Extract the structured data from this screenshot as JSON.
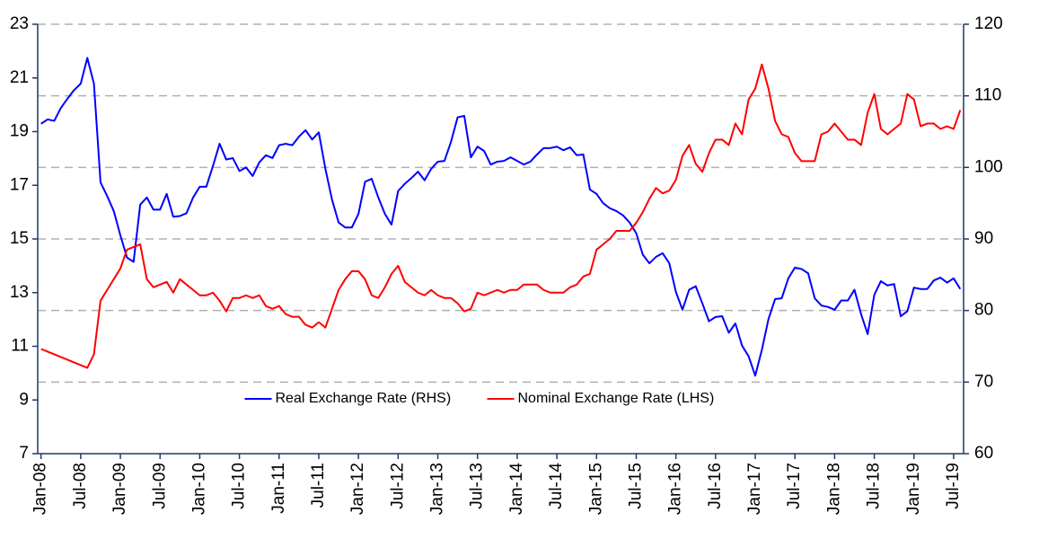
{
  "chart_data": {
    "type": "line",
    "categories": [
      "Jan-08",
      null,
      null,
      null,
      null,
      null,
      "Jul-08",
      null,
      null,
      null,
      null,
      null,
      "Jan-09",
      null,
      null,
      null,
      null,
      null,
      "Jul-09",
      null,
      null,
      null,
      null,
      null,
      "Jan-10",
      null,
      null,
      null,
      null,
      null,
      "Jul-10",
      null,
      null,
      null,
      null,
      null,
      "Jan-11",
      null,
      null,
      null,
      null,
      null,
      "Jul-11",
      null,
      null,
      null,
      null,
      null,
      "Jan-12",
      null,
      null,
      null,
      null,
      null,
      "Jul-12",
      null,
      null,
      null,
      null,
      null,
      "Jan-13",
      null,
      null,
      null,
      null,
      null,
      "Jul-13",
      null,
      null,
      null,
      null,
      null,
      "Jan-14",
      null,
      null,
      null,
      null,
      null,
      "Jul-14",
      null,
      null,
      null,
      null,
      null,
      "Jan-15",
      null,
      null,
      null,
      null,
      null,
      "Jul-15",
      null,
      null,
      null,
      null,
      null,
      "Jan-16",
      null,
      null,
      null,
      null,
      null,
      "Jul-16",
      null,
      null,
      null,
      null,
      null,
      "Jan-17",
      null,
      null,
      null,
      null,
      null,
      "Jul-17",
      null,
      null,
      null,
      null,
      null,
      "Jan-18",
      null,
      null,
      null,
      null,
      null,
      "Jul-18",
      null,
      null,
      null,
      null,
      null,
      "Jan-19",
      null,
      null,
      null,
      null,
      null,
      "Jul-19",
      null
    ],
    "series": [
      {
        "name": "Real Exchange Rate (RHS)",
        "color": "#0000ff",
        "axis": "y2",
        "values": [
          106.1,
          106.7,
          106.5,
          108.3,
          109.6,
          110.8,
          111.7,
          115.3,
          111.7,
          97.9,
          96.0,
          93.9,
          90.5,
          87.4,
          86.8,
          94.8,
          95.8,
          94.1,
          94.1,
          96.3,
          93.1,
          93.2,
          93.6,
          95.8,
          97.3,
          97.3,
          100.2,
          103.3,
          101.1,
          101.3,
          99.5,
          100.0,
          98.8,
          100.7,
          101.7,
          101.3,
          103.1,
          103.3,
          103.1,
          104.3,
          105.2,
          103.9,
          104.9,
          99.8,
          95.5,
          92.3,
          91.6,
          91.6,
          93.5,
          98.0,
          98.4,
          95.8,
          93.5,
          92.0,
          96.7,
          97.7,
          98.5,
          99.4,
          98.2,
          99.8,
          100.8,
          100.9,
          103.6,
          107.0,
          107.2,
          101.4,
          102.9,
          102.3,
          100.4,
          100.8,
          100.9,
          101.4,
          100.9,
          100.4,
          100.8,
          101.8,
          102.7,
          102.7,
          102.9,
          102.4,
          102.8,
          101.7,
          101.8,
          96.9,
          96.3,
          95.0,
          94.3,
          93.9,
          93.3,
          92.3,
          90.8,
          87.8,
          86.6,
          87.5,
          88.0,
          86.6,
          82.6,
          80.1,
          82.9,
          83.4,
          81.0,
          78.5,
          79.1,
          79.2,
          76.9,
          78.2,
          75.1,
          73.6,
          70.9,
          74.5,
          78.8,
          81.6,
          81.7,
          84.5,
          86.0,
          85.8,
          85.2,
          81.7,
          80.7,
          80.5,
          80.1,
          81.4,
          81.4,
          82.9,
          79.5,
          76.7,
          82.2,
          84.1,
          83.5,
          83.7,
          79.2,
          79.9,
          83.2,
          83.0,
          83.0,
          84.2,
          84.6,
          83.9,
          84.5,
          83.0
        ]
      },
      {
        "name": "Nominal Exchange Rate (LHS)",
        "color": "#ff0000",
        "axis": "y",
        "values": [
          10.9,
          10.8,
          10.7,
          10.6,
          10.5,
          10.4,
          10.3,
          10.2,
          10.7,
          12.7,
          13.1,
          13.5,
          13.9,
          14.6,
          14.7,
          14.8,
          13.5,
          13.2,
          13.3,
          13.4,
          13.0,
          13.5,
          13.3,
          13.1,
          12.9,
          12.9,
          13.0,
          12.7,
          12.3,
          12.8,
          12.8,
          12.9,
          12.8,
          12.9,
          12.5,
          12.4,
          12.5,
          12.2,
          12.1,
          12.1,
          11.8,
          11.7,
          11.9,
          11.7,
          12.4,
          13.1,
          13.5,
          13.8,
          13.8,
          13.5,
          12.9,
          12.8,
          13.2,
          13.7,
          14.0,
          13.4,
          13.2,
          13.0,
          12.9,
          13.1,
          12.9,
          12.8,
          12.8,
          12.6,
          12.3,
          12.4,
          13.0,
          12.9,
          13.0,
          13.1,
          13.0,
          13.1,
          13.1,
          13.3,
          13.3,
          13.3,
          13.1,
          13.0,
          13.0,
          13.0,
          13.2,
          13.3,
          13.6,
          13.7,
          14.6,
          14.8,
          15.0,
          15.3,
          15.3,
          15.3,
          15.6,
          16.0,
          16.5,
          16.9,
          16.7,
          16.8,
          17.2,
          18.1,
          18.5,
          17.8,
          17.5,
          18.2,
          18.7,
          18.7,
          18.5,
          19.3,
          18.9,
          20.2,
          20.6,
          21.5,
          20.6,
          19.4,
          18.9,
          18.8,
          18.2,
          17.9,
          17.9,
          17.9,
          18.9,
          19.0,
          19.3,
          19.0,
          18.7,
          18.7,
          18.5,
          19.7,
          20.4,
          19.1,
          18.9,
          19.1,
          19.3,
          20.4,
          20.2,
          19.2,
          19.3,
          19.3,
          19.1,
          19.2,
          19.1,
          19.8
        ]
      }
    ],
    "ylim": [
      7,
      23
    ],
    "yticks": [
      7,
      9,
      11,
      13,
      15,
      17,
      19,
      21,
      23
    ],
    "y2lim": [
      60,
      120
    ],
    "y2ticks": [
      60,
      70,
      80,
      90,
      100,
      110,
      120
    ],
    "grid": "y2",
    "legend": "lower center"
  }
}
